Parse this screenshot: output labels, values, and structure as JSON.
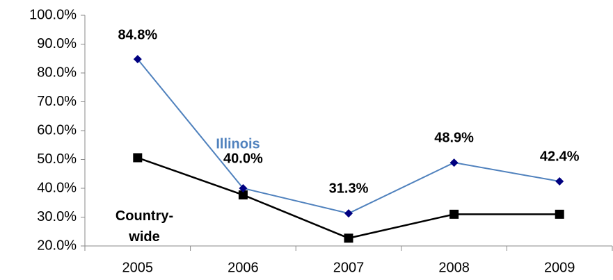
{
  "chart_data": {
    "type": "line",
    "categories": [
      "2005",
      "2006",
      "2007",
      "2008",
      "2009"
    ],
    "series": [
      {
        "name": "Illinois",
        "color": "#4f81bd",
        "marker_color": "#000080",
        "values": [
          84.8,
          40.0,
          31.3,
          48.9,
          42.4
        ],
        "value_labels": [
          "84.8%",
          "40.0%",
          "31.3%",
          "48.9%",
          "42.4%"
        ]
      },
      {
        "name": "Country-wide",
        "color": "#000000",
        "marker_color": "#000000",
        "values": [
          50.6,
          37.7,
          22.7,
          31.0,
          31.0
        ]
      }
    ],
    "ylim": [
      20,
      100
    ],
    "yticks": [
      {
        "value": 20,
        "label": "20.0%"
      },
      {
        "value": 30,
        "label": "30.0%"
      },
      {
        "value": 40,
        "label": "40.0%"
      },
      {
        "value": 50,
        "label": "50.0%"
      },
      {
        "value": 60,
        "label": "60.0%"
      },
      {
        "value": 70,
        "label": "70.0%"
      },
      {
        "value": 80,
        "label": "80.0%"
      },
      {
        "value": 90,
        "label": "90.0%"
      },
      {
        "value": 100,
        "label": "100.0%"
      }
    ],
    "grid": false
  }
}
